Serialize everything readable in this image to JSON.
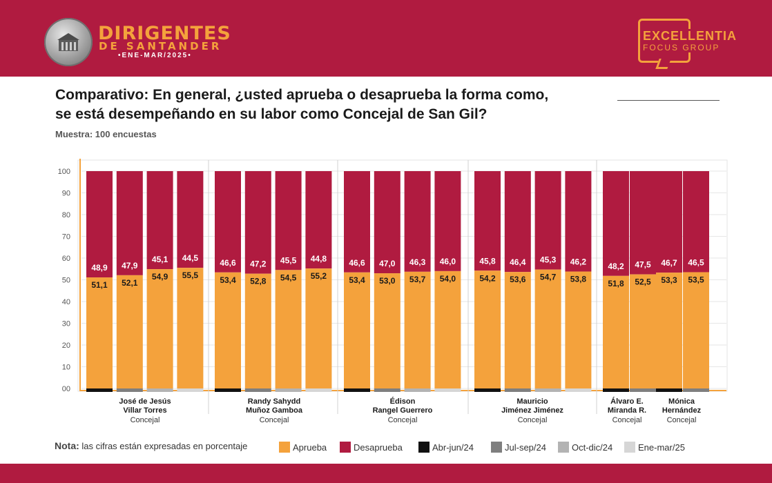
{
  "header": {
    "seal_text": "SANTANDER",
    "brand_title": "DIRIGENTES",
    "brand_subtitle": "DE SANTANDER",
    "brand_period": "•ENE-MAR/2025•",
    "partner_title": "EXCELLENTIA",
    "partner_subtitle": "FOCUS GROUP"
  },
  "question": {
    "line1": "Comparativo: En general, ¿usted aprueba o desaprueba la forma como,",
    "line2": "se está desempeñando en su labor como Concejal de San Gil?"
  },
  "sample": "Muestra: 100 encuestas",
  "note": {
    "label": "Nota:",
    "text": " las cifras están expresadas en porcentaje"
  },
  "legend": {
    "approve": "Aprueba",
    "disapprove": "Desaprueba",
    "p1": "Abr-jun/24",
    "p2": "Jul-sep/24",
    "p3": "Oct-dic/24",
    "p4": "Ene-mar/25"
  },
  "colors": {
    "approve": "#f4a23c",
    "disapprove": "#b01b40",
    "p1": "#111111",
    "p2": "#7f7f7f",
    "p3": "#b3b3b3",
    "p4": "#d6d6d6",
    "brand_red": "#b01b40",
    "brand_orange": "#f4a23c"
  },
  "chart_data": {
    "type": "bar",
    "stacked": true,
    "ylim": [
      0,
      100
    ],
    "yticks": [
      "00",
      "10",
      "20",
      "30",
      "40",
      "50",
      "60",
      "70",
      "80",
      "90",
      "100"
    ],
    "grid": true,
    "periods": [
      "Abr-jun/24",
      "Jul-sep/24",
      "Oct-dic/24",
      "Ene-mar/25"
    ],
    "groups": [
      {
        "name": [
          "José de Jesús",
          "Villar Torres"
        ],
        "role": "Concejal",
        "approve": [
          "51,1",
          "52,1",
          "54,9",
          "55,5"
        ],
        "disapprove": [
          "48,9",
          "47,9",
          "45,1",
          "44,5"
        ]
      },
      {
        "name": [
          "Randy Sahydd",
          "Muñoz Gamboa"
        ],
        "role": "Concejal",
        "approve": [
          "53,4",
          "52,8",
          "54,5",
          "55,2"
        ],
        "disapprove": [
          "46,6",
          "47,2",
          "45,5",
          "44,8"
        ]
      },
      {
        "name": [
          "Édison",
          "Rangel Guerrero"
        ],
        "role": "Concejal",
        "approve": [
          "53,4",
          "53,0",
          "53,7",
          "54,0"
        ],
        "disapprove": [
          "46,6",
          "47,0",
          "46,3",
          "46,0"
        ]
      },
      {
        "name": [
          "Mauricio",
          "Jiménez Jiménez"
        ],
        "role": "Concejal",
        "approve": [
          "54,2",
          "53,6",
          "54,7",
          "53,8"
        ],
        "disapprove": [
          "45,8",
          "46,4",
          "45,3",
          "46,2"
        ]
      },
      {
        "name": [
          "Álvaro E.",
          "Miranda R."
        ],
        "role": "Concejal",
        "approve": [
          "51,8",
          "52,5"
        ],
        "disapprove": [
          "48,2",
          "47,5"
        ]
      },
      {
        "name": [
          "Mónica",
          "Hernández"
        ],
        "role": "Concejal",
        "approve": [
          "53,3",
          "53,5"
        ],
        "disapprove": [
          "46,7",
          "46,5"
        ]
      }
    ]
  }
}
